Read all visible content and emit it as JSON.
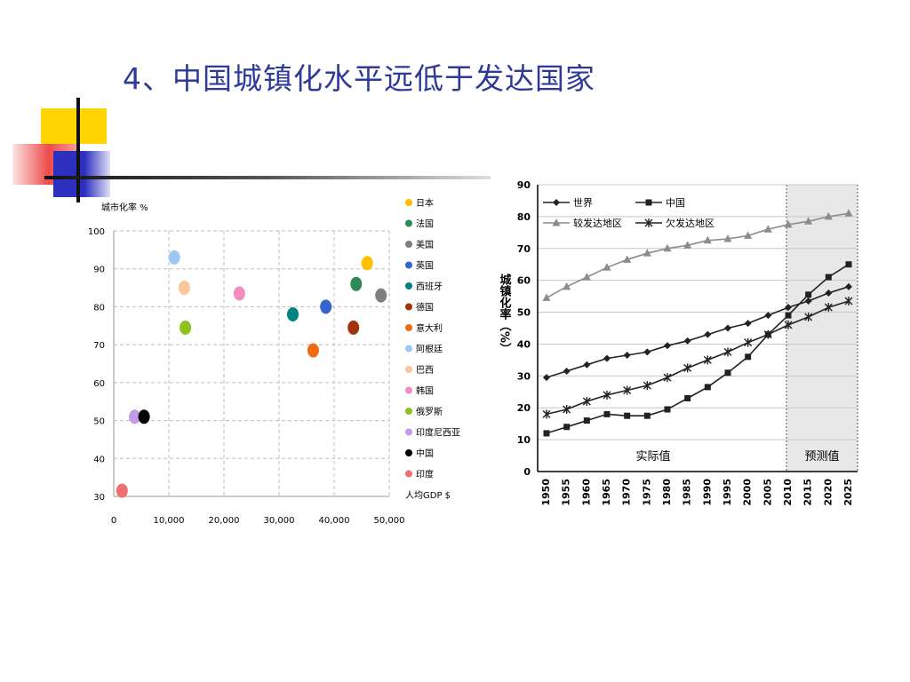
{
  "slide": {
    "title": "4、中国城镇化水平远低于发达国家"
  },
  "chart_data": [
    {
      "type": "scatter",
      "ylabel": "城市化率 %",
      "xlabel": "人均GDP $",
      "xlim": [
        0,
        50000
      ],
      "ylim": [
        30,
        100
      ],
      "x_ticks": [
        0,
        10000,
        20000,
        30000,
        40000,
        50000
      ],
      "x_tick_labels": [
        "0",
        "10,000",
        "20,000",
        "30,000",
        "40,000",
        "50,000"
      ],
      "y_ticks": [
        30,
        40,
        50,
        60,
        70,
        80,
        90,
        100
      ],
      "grid": true,
      "legend_position": "right",
      "points": [
        {
          "name": "日本",
          "x": 46000,
          "y": 91.5,
          "color": "#ffc000"
        },
        {
          "name": "法国",
          "x": 44000,
          "y": 86,
          "color": "#2e8b57"
        },
        {
          "name": "美国",
          "x": 48500,
          "y": 83,
          "color": "#7f7f7f"
        },
        {
          "name": "英国",
          "x": 38500,
          "y": 80,
          "color": "#3366cc"
        },
        {
          "name": "西班牙",
          "x": 32500,
          "y": 78,
          "color": "#00827f"
        },
        {
          "name": "德国",
          "x": 43500,
          "y": 74.5,
          "color": "#a0330a"
        },
        {
          "name": "意大利",
          "x": 36200,
          "y": 68.5,
          "color": "#f06a10"
        },
        {
          "name": "阿根廷",
          "x": 11000,
          "y": 93,
          "color": "#9cc8f5"
        },
        {
          "name": "巴西",
          "x": 12800,
          "y": 85,
          "color": "#f8c79a"
        },
        {
          "name": "韩国",
          "x": 22800,
          "y": 83.5,
          "color": "#f48cc0"
        },
        {
          "name": "俄罗斯",
          "x": 13000,
          "y": 74.5,
          "color": "#8dc21f"
        },
        {
          "name": "印度尼西亚",
          "x": 3800,
          "y": 51,
          "color": "#c49be6"
        },
        {
          "name": "中国",
          "x": 5500,
          "y": 51,
          "color": "#000000"
        },
        {
          "name": "印度",
          "x": 1500,
          "y": 31.5,
          "color": "#f07070"
        }
      ]
    },
    {
      "type": "line",
      "ylabel": "城镇化率（%）",
      "ylim": [
        0,
        90
      ],
      "y_ticks": [
        0,
        10,
        20,
        30,
        40,
        50,
        60,
        70,
        80,
        90
      ],
      "x": [
        1950,
        1955,
        1960,
        1965,
        1970,
        1975,
        1980,
        1985,
        1990,
        1995,
        2000,
        2005,
        2010,
        2015,
        2020,
        2025
      ],
      "grid": true,
      "legend_position": "top-left",
      "annotations": {
        "actual": "实际值",
        "forecast": "预测值"
      },
      "forecast_start": 2010,
      "series": [
        {
          "name": "世界",
          "marker": "diamond",
          "color": "#222222",
          "values": [
            29.5,
            31.5,
            33.5,
            35.5,
            36.5,
            37.5,
            39.5,
            41,
            43,
            45,
            46.5,
            49,
            51.5,
            53.5,
            56,
            58
          ]
        },
        {
          "name": "中国",
          "marker": "square",
          "color": "#222222",
          "values": [
            12,
            14,
            16,
            18,
            17.5,
            17.5,
            19.5,
            23,
            26.5,
            31,
            36,
            43,
            49,
            55.5,
            61,
            65
          ]
        },
        {
          "name": "较发达地区",
          "marker": "triangle",
          "color": "#8c8c8c",
          "values": [
            54.5,
            58,
            61,
            64,
            66.5,
            68.5,
            70,
            71,
            72.5,
            73,
            74,
            76,
            77.5,
            78.5,
            80,
            81
          ]
        },
        {
          "name": "欠发达地区",
          "marker": "star",
          "color": "#222222",
          "values": [
            18,
            19.5,
            22,
            24,
            25.5,
            27,
            29.5,
            32.5,
            35,
            37.5,
            40.5,
            43,
            46,
            48.5,
            51.5,
            53.5
          ]
        }
      ]
    }
  ]
}
